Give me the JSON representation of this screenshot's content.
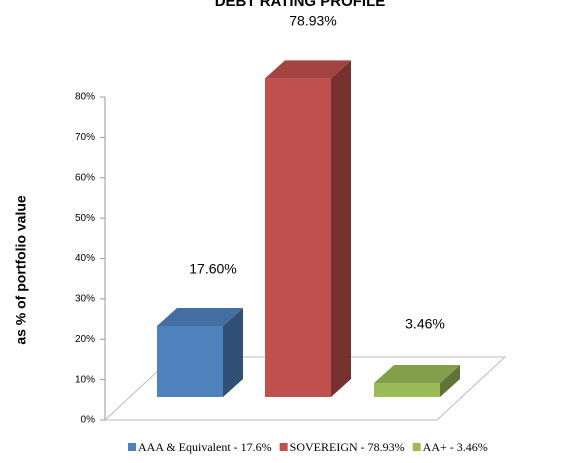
{
  "chart_data": {
    "type": "bar3d",
    "title": "DEBT RATING PROFILE",
    "y_label": "as % of portfolio value",
    "ylim": [
      0,
      80
    ],
    "yticks": [
      {
        "value": 0,
        "label": "0%"
      },
      {
        "value": 10,
        "label": "10%"
      },
      {
        "value": 20,
        "label": "20%"
      },
      {
        "value": 30,
        "label": "30%"
      },
      {
        "value": 40,
        "label": "40%"
      },
      {
        "value": 50,
        "label": "50%"
      },
      {
        "value": 60,
        "label": "60%"
      },
      {
        "value": 70,
        "label": "70%"
      },
      {
        "value": 80,
        "label": "80%"
      }
    ],
    "series": [
      {
        "name": "AAA & Equivalent - 17.6%",
        "color": "#4f81bd",
        "values": [
          17.6
        ],
        "value_labels": [
          "17.60%"
        ]
      },
      {
        "name": "SOVEREIGN - 78.93%",
        "color": "#c0504d",
        "values": [
          78.93
        ],
        "value_labels": [
          "78.93%"
        ]
      },
      {
        "name": "AA+ - 3.46%",
        "color": "#9bbb59",
        "values": [
          3.46
        ],
        "value_labels": [
          "3.46%"
        ]
      }
    ]
  }
}
